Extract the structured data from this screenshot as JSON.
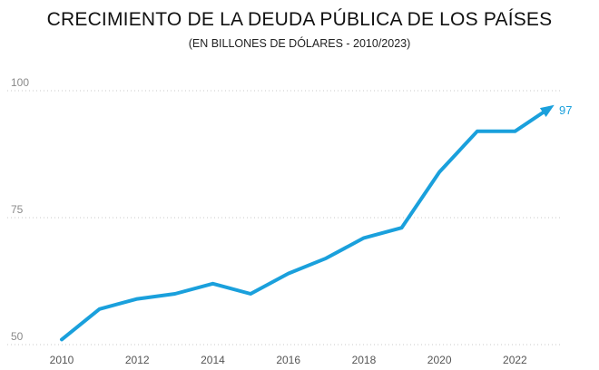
{
  "chart_data": {
    "type": "line",
    "title": "CRECIMIENTO DE LA DEUDA PÚBLICA DE LOS PAÍSES",
    "subtitle": "(EN BILLONES DE DÓLARES - 2010/2023)",
    "xlabel": "",
    "ylabel": "",
    "x": [
      2010,
      2011,
      2012,
      2013,
      2014,
      2015,
      2016,
      2017,
      2018,
      2019,
      2020,
      2021,
      2022,
      2023
    ],
    "series": [
      {
        "values": [
          51,
          57,
          59,
          60,
          62,
          60,
          64,
          67,
          71,
          73,
          84,
          92,
          92,
          97
        ],
        "color": "#1aa0dc"
      }
    ],
    "xticks": [
      "2010",
      "2012",
      "2014",
      "2016",
      "2018",
      "2020",
      "2022"
    ],
    "yticks": [
      "50",
      "75",
      "100"
    ],
    "ylim": [
      50,
      100
    ],
    "xlim": [
      2010,
      2023
    ],
    "grid": "horizontal-dotted",
    "end_label": "97",
    "end_marker": "arrow"
  }
}
